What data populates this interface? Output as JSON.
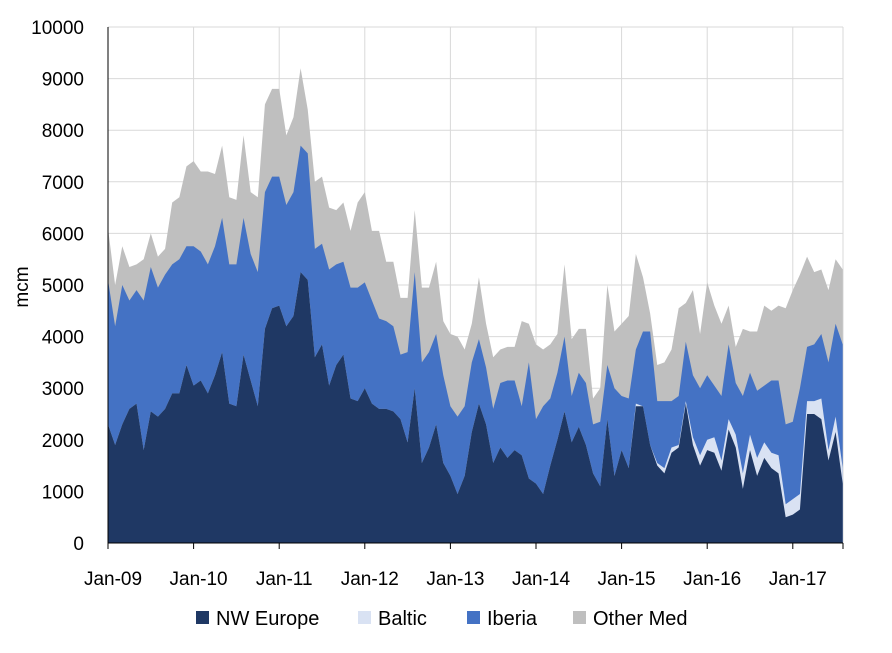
{
  "chart_data": {
    "type": "area",
    "stacked": true,
    "title": "",
    "xlabel": "",
    "ylabel": "mcm",
    "ylim": [
      0,
      10000
    ],
    "yticks": [
      0,
      1000,
      2000,
      3000,
      4000,
      5000,
      6000,
      7000,
      8000,
      9000,
      10000
    ],
    "xticks": [
      "Jan-09",
      "Jan-10",
      "Jan-11",
      "Jan-12",
      "Jan-13",
      "Jan-14",
      "Jan-15",
      "Jan-16",
      "Jan-17"
    ],
    "grid": "vertical and horizontal",
    "legend_position": "bottom",
    "x_start": "Jan-09",
    "x_frequency": "monthly",
    "series": [
      {
        "name": "NW Europe",
        "color": "#1f3864",
        "values": [
          2300,
          1900,
          2300,
          2600,
          2700,
          1800,
          2550,
          2450,
          2600,
          2900,
          2900,
          3450,
          3050,
          3150,
          2900,
          3250,
          3700,
          2700,
          2650,
          3650,
          3150,
          2650,
          4150,
          4550,
          4600,
          4200,
          4400,
          5250,
          5100,
          3600,
          3850,
          3050,
          3450,
          3650,
          2800,
          2750,
          3000,
          2700,
          2600,
          2600,
          2550,
          2400,
          1950,
          3000,
          1550,
          1850,
          2300,
          1550,
          1300,
          950,
          1300,
          2150,
          2700,
          2300,
          1550,
          1850,
          1650,
          1800,
          1700,
          1250,
          1150,
          950,
          1500,
          2000,
          2550,
          1950,
          2250,
          1900,
          1350,
          1100,
          2400,
          1300,
          1800,
          1450,
          2650,
          2650,
          1900,
          1500,
          1350,
          1750,
          1850,
          2700,
          1900,
          1500,
          1800,
          1750,
          1400,
          2200,
          1850,
          1050,
          1800,
          1300,
          1650,
          1450,
          1350,
          500,
          550,
          650,
          2500,
          2500,
          2400,
          1600,
          2150,
          1150
        ],
        "values_stacked": [
          2300,
          1900,
          2300,
          2600,
          2700,
          1800,
          2550,
          2450,
          2600,
          2900,
          2900,
          3450,
          3050,
          3150,
          2900,
          3250,
          3700,
          2700,
          2650,
          3650,
          3150,
          2650,
          4150,
          4550,
          4600,
          4200,
          4400,
          5250,
          5100,
          3600,
          3850,
          3050,
          3450,
          3650,
          2800,
          2750,
          3000,
          2700,
          2600,
          2600,
          2550,
          2400,
          1950,
          3000,
          1550,
          1850,
          2300,
          1550,
          1300,
          950,
          1300,
          2150,
          2700,
          2300,
          1550,
          1850,
          1650,
          1800,
          1700,
          1250,
          1150,
          950,
          1500,
          2000,
          2550,
          1950,
          2250,
          1900,
          1350,
          1100,
          2400,
          1300,
          1800,
          1450,
          2650,
          2650,
          1900,
          1500,
          1350,
          1750,
          1850,
          2700,
          1900,
          1500,
          1800,
          1750,
          1400,
          2200,
          1850,
          1050,
          1800,
          1300,
          1650,
          1450,
          1350,
          500,
          550,
          650,
          2500,
          2500,
          2400,
          1600,
          2150,
          1150
        ]
      },
      {
        "name": "Baltic",
        "color": "#d9e2f3",
        "values": [
          0,
          0,
          0,
          0,
          0,
          0,
          0,
          0,
          0,
          0,
          0,
          0,
          0,
          0,
          0,
          0,
          0,
          0,
          0,
          0,
          0,
          0,
          0,
          0,
          0,
          0,
          0,
          0,
          0,
          0,
          0,
          0,
          0,
          0,
          0,
          0,
          0,
          0,
          0,
          0,
          0,
          0,
          0,
          0,
          0,
          0,
          0,
          0,
          0,
          0,
          0,
          0,
          0,
          0,
          0,
          0,
          0,
          0,
          0,
          0,
          0,
          0,
          0,
          0,
          0,
          0,
          0,
          0,
          0,
          0,
          0,
          0,
          0,
          0,
          50,
          0,
          0,
          50,
          100,
          100,
          50,
          50,
          150,
          200,
          200,
          300,
          200,
          200,
          250,
          300,
          300,
          350,
          300,
          300,
          350,
          250,
          300,
          300,
          250,
          250,
          400,
          200,
          300,
          300
        ],
        "values_stacked": [
          2300,
          1900,
          2300,
          2600,
          2700,
          1800,
          2550,
          2450,
          2600,
          2900,
          2900,
          3450,
          3050,
          3150,
          2900,
          3250,
          3700,
          2700,
          2650,
          3650,
          3150,
          2650,
          4150,
          4550,
          4600,
          4200,
          4400,
          5250,
          5100,
          3600,
          3850,
          3050,
          3450,
          3650,
          2800,
          2750,
          3000,
          2700,
          2600,
          2600,
          2550,
          2400,
          1950,
          3000,
          1550,
          1850,
          2300,
          1550,
          1300,
          950,
          1300,
          2150,
          2700,
          2300,
          1550,
          1850,
          1650,
          1800,
          1700,
          1250,
          1150,
          950,
          1500,
          2000,
          2550,
          1950,
          2250,
          1900,
          1350,
          1100,
          2400,
          1300,
          1800,
          1450,
          2700,
          2650,
          1900,
          1550,
          1450,
          1850,
          1900,
          2750,
          2050,
          1700,
          2000,
          2050,
          1600,
          2400,
          2100,
          1350,
          2100,
          1650,
          1950,
          1750,
          1700,
          750,
          850,
          950,
          2750,
          2750,
          2800,
          1800,
          2450,
          1450
        ]
      },
      {
        "name": "Iberia",
        "color": "#4472c4",
        "values": [
          2800,
          2300,
          2700,
          2100,
          2200,
          2900,
          2800,
          2500,
          2600,
          2500,
          2600,
          2300,
          2700,
          2500,
          2500,
          2500,
          2600,
          2700,
          2750,
          2650,
          2450,
          2600,
          2650,
          2550,
          2500,
          2350,
          2400,
          2450,
          2450,
          2100,
          1950,
          2250,
          1950,
          1800,
          2150,
          2200,
          2050,
          2000,
          1750,
          1700,
          1650,
          1250,
          1750,
          2250,
          1950,
          1850,
          1750,
          1700,
          1350,
          1500,
          1350,
          1350,
          1250,
          1100,
          1050,
          1250,
          1500,
          1350,
          950,
          2250,
          1250,
          1700,
          1300,
          1300,
          1450,
          900,
          1050,
          1200,
          950,
          1250,
          1050,
          1700,
          1050,
          1350,
          1050,
          1450,
          2200,
          1200,
          1300,
          900,
          950,
          1150,
          1200,
          1300,
          1250,
          1000,
          1250,
          1450,
          1000,
          1500,
          1200,
          1300,
          1100,
          1400,
          1450,
          1550,
          1500,
          2050,
          1050,
          1100,
          1250,
          1700,
          1800,
          2400
        ],
        "values_stacked": [
          5100,
          4200,
          5000,
          4700,
          4900,
          4700,
          5350,
          4950,
          5200,
          5400,
          5500,
          5750,
          5750,
          5650,
          5400,
          5750,
          6300,
          5400,
          5400,
          6300,
          5600,
          5250,
          6800,
          7100,
          7100,
          6550,
          6800,
          7700,
          7550,
          5700,
          5800,
          5300,
          5400,
          5450,
          4950,
          4950,
          5050,
          4700,
          4350,
          4300,
          4200,
          3650,
          3700,
          5250,
          3500,
          3700,
          4050,
          3250,
          2650,
          2450,
          2650,
          3500,
          3950,
          3400,
          2600,
          3100,
          3150,
          3150,
          2650,
          3500,
          2400,
          2650,
          2800,
          3300,
          4000,
          2850,
          3300,
          3100,
          2300,
          2350,
          3450,
          3000,
          2850,
          2800,
          3750,
          4100,
          4100,
          2750,
          2750,
          2750,
          2850,
          3900,
          3250,
          3000,
          3250,
          3050,
          2850,
          3850,
          3100,
          2850,
          3300,
          2950,
          3050,
          3150,
          3150,
          2300,
          2350,
          3000,
          3800,
          3850,
          4050,
          3500,
          4250,
          3850
        ]
      },
      {
        "name": "Other Med",
        "color": "#bfbfbf",
        "values": [
          1000,
          800,
          750,
          650,
          500,
          800,
          650,
          600,
          500,
          1200,
          1200,
          1550,
          1650,
          1550,
          1800,
          1400,
          1400,
          1300,
          1250,
          1600,
          1200,
          1450,
          1700,
          1700,
          1700,
          1350,
          1450,
          1500,
          850,
          1300,
          1300,
          1200,
          1050,
          1150,
          1100,
          1650,
          1750,
          1350,
          1700,
          1150,
          1250,
          1100,
          1050,
          1200,
          1450,
          1250,
          1400,
          1050,
          1400,
          1550,
          1100,
          750,
          1200,
          850,
          1000,
          650,
          650,
          650,
          1650,
          750,
          1450,
          1100,
          1050,
          750,
          1400,
          1100,
          850,
          1050,
          500,
          650,
          1550,
          1100,
          1400,
          1600,
          1850,
          1050,
          350,
          700,
          750,
          1000,
          1700,
          750,
          1650,
          1050,
          1800,
          1550,
          1400,
          750,
          700,
          1300,
          800,
          1150,
          1550,
          1350,
          1450,
          2250,
          2550,
          2200,
          1750,
          1400,
          1250,
          1400,
          1250,
          1450
        ],
        "values_stacked": [
          6100,
          5000,
          5750,
          5350,
          5400,
          5500,
          6000,
          5550,
          5700,
          6600,
          6700,
          7300,
          7400,
          7200,
          7200,
          7150,
          7700,
          6700,
          6650,
          7900,
          6800,
          6700,
          8500,
          8800,
          8800,
          7900,
          8250,
          9200,
          8400,
          7000,
          7100,
          6500,
          6450,
          6600,
          6050,
          6600,
          6800,
          6050,
          6050,
          5450,
          5450,
          4750,
          4750,
          6450,
          4950,
          4950,
          5450,
          4300,
          4050,
          4000,
          3750,
          4250,
          5150,
          4250,
          3600,
          3750,
          3800,
          3800,
          4300,
          4250,
          3850,
          3750,
          3850,
          4050,
          5400,
          3950,
          4150,
          4150,
          2800,
          3000,
          5000,
          4100,
          4250,
          4400,
          5600,
          5150,
          4450,
          3450,
          3500,
          3750,
          4550,
          4650,
          4900,
          4050,
          5050,
          4600,
          4250,
          4600,
          3800,
          4150,
          4100,
          4100,
          4600,
          4500,
          4600,
          4550,
          4900,
          5200,
          5550,
          5250,
          5300,
          4900,
          5500,
          5300
        ]
      }
    ]
  }
}
